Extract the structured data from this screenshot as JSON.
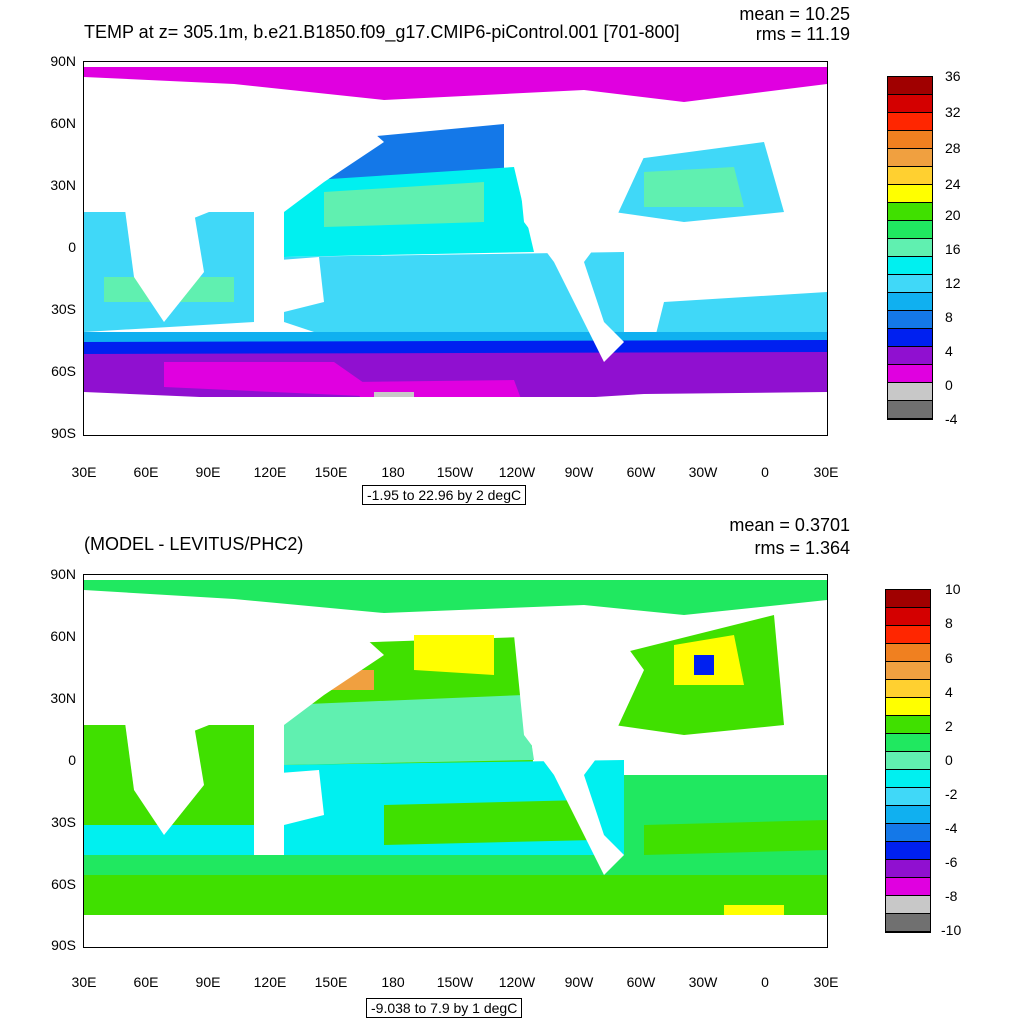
{
  "panels": [
    {
      "title": "TEMP at z= 305.1m, b.e21.B1850.f09_g17.CMIP6-piControl.001 [701-800]",
      "mean_text": "mean = 10.25",
      "rms_text": "rms = 11.19",
      "range_text": "-1.95 to 22.96 by 2 degC",
      "y_ticks": [
        "90N",
        "60N",
        "30N",
        "0",
        "30S",
        "60S",
        "90S"
      ],
      "x_ticks": [
        "30E",
        "60E",
        "90E",
        "120E",
        "150E",
        "180",
        "150W",
        "120W",
        "90W",
        "60W",
        "30W",
        "0",
        "30E"
      ],
      "colorbar": {
        "labels": [
          "36",
          "32",
          "28",
          "24",
          "20",
          "16",
          "12",
          "8",
          "4",
          "0",
          "-4"
        ],
        "colors": [
          "#a00000",
          "#d40000",
          "#ff2600",
          "#f08020",
          "#f0a040",
          "#ffd030",
          "#ffff00",
          "#40e000",
          "#20e860",
          "#60f0b0",
          "#00f0f0",
          "#40d8f8",
          "#10b0f0",
          "#1478e8",
          "#0020f0",
          "#9010d0",
          "#e000e0",
          "#c8c8c8",
          "#707070"
        ]
      }
    },
    {
      "title": "(MODEL - LEVITUS/PHC2)",
      "mean_text": "mean = 0.3701",
      "rms_text": "rms = 1.364",
      "range_text": "-9.038 to 7.9 by 1 degC",
      "y_ticks": [
        "90N",
        "60N",
        "30N",
        "0",
        "30S",
        "60S",
        "90S"
      ],
      "x_ticks": [
        "30E",
        "60E",
        "90E",
        "120E",
        "150E",
        "180",
        "150W",
        "120W",
        "90W",
        "60W",
        "30W",
        "0",
        "30E"
      ],
      "colorbar": {
        "labels": [
          "10",
          "8",
          "6",
          "4",
          "2",
          "0",
          "-2",
          "-4",
          "-6",
          "-8",
          "-10"
        ],
        "colors": [
          "#a00000",
          "#d40000",
          "#ff2600",
          "#f08020",
          "#f0a040",
          "#ffd030",
          "#ffff00",
          "#40e000",
          "#20e860",
          "#60f0b0",
          "#00f0f0",
          "#40d8f8",
          "#10b0f0",
          "#1478e8",
          "#0020f0",
          "#9010d0",
          "#e000e0",
          "#c8c8c8",
          "#707070"
        ]
      }
    }
  ]
}
